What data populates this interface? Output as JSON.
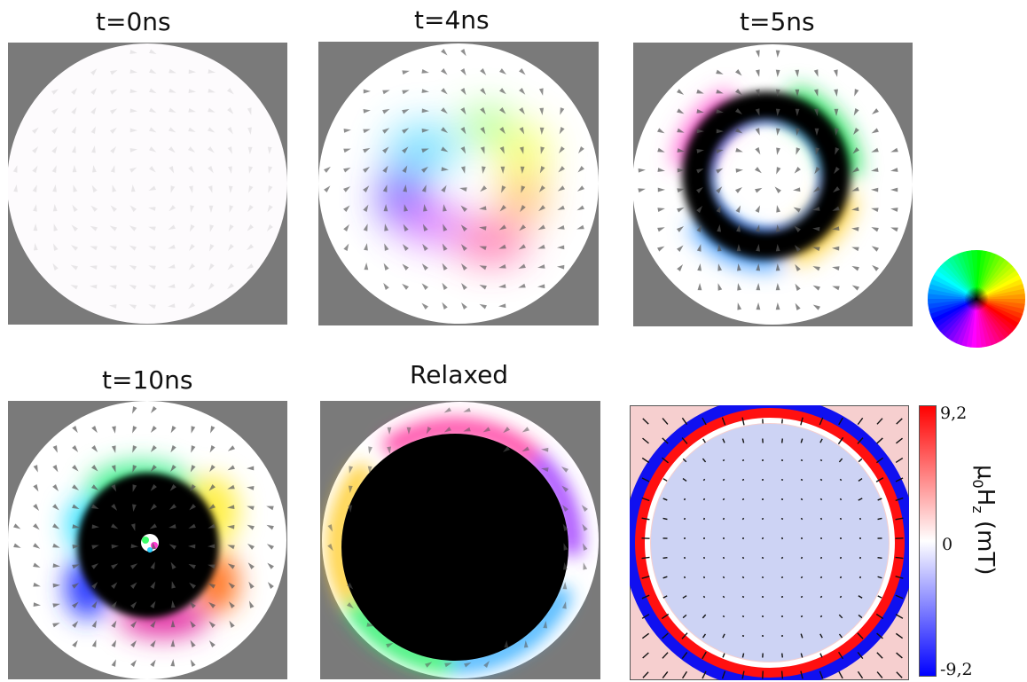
{
  "panels": [
    {
      "title": "t=0ns"
    },
    {
      "title": "t=4ns"
    },
    {
      "title": "t=5ns"
    },
    {
      "title": "t=10ns"
    },
    {
      "title": "Relaxed"
    }
  ],
  "field_map": {
    "colorbar_max": "9,2",
    "colorbar_mid": "0",
    "colorbar_min": "-9,2",
    "quantity": "μ",
    "quantity_sub1": "0",
    "quantity_mid": "H",
    "quantity_sub2": "z",
    "unit": " (mT)"
  },
  "colors": {
    "background_gray": "#7a7a7a",
    "positive": "#ff0000",
    "negative": "#0000ff",
    "core": "#000000"
  },
  "icons": [
    "hue-color-wheel-icon"
  ]
}
